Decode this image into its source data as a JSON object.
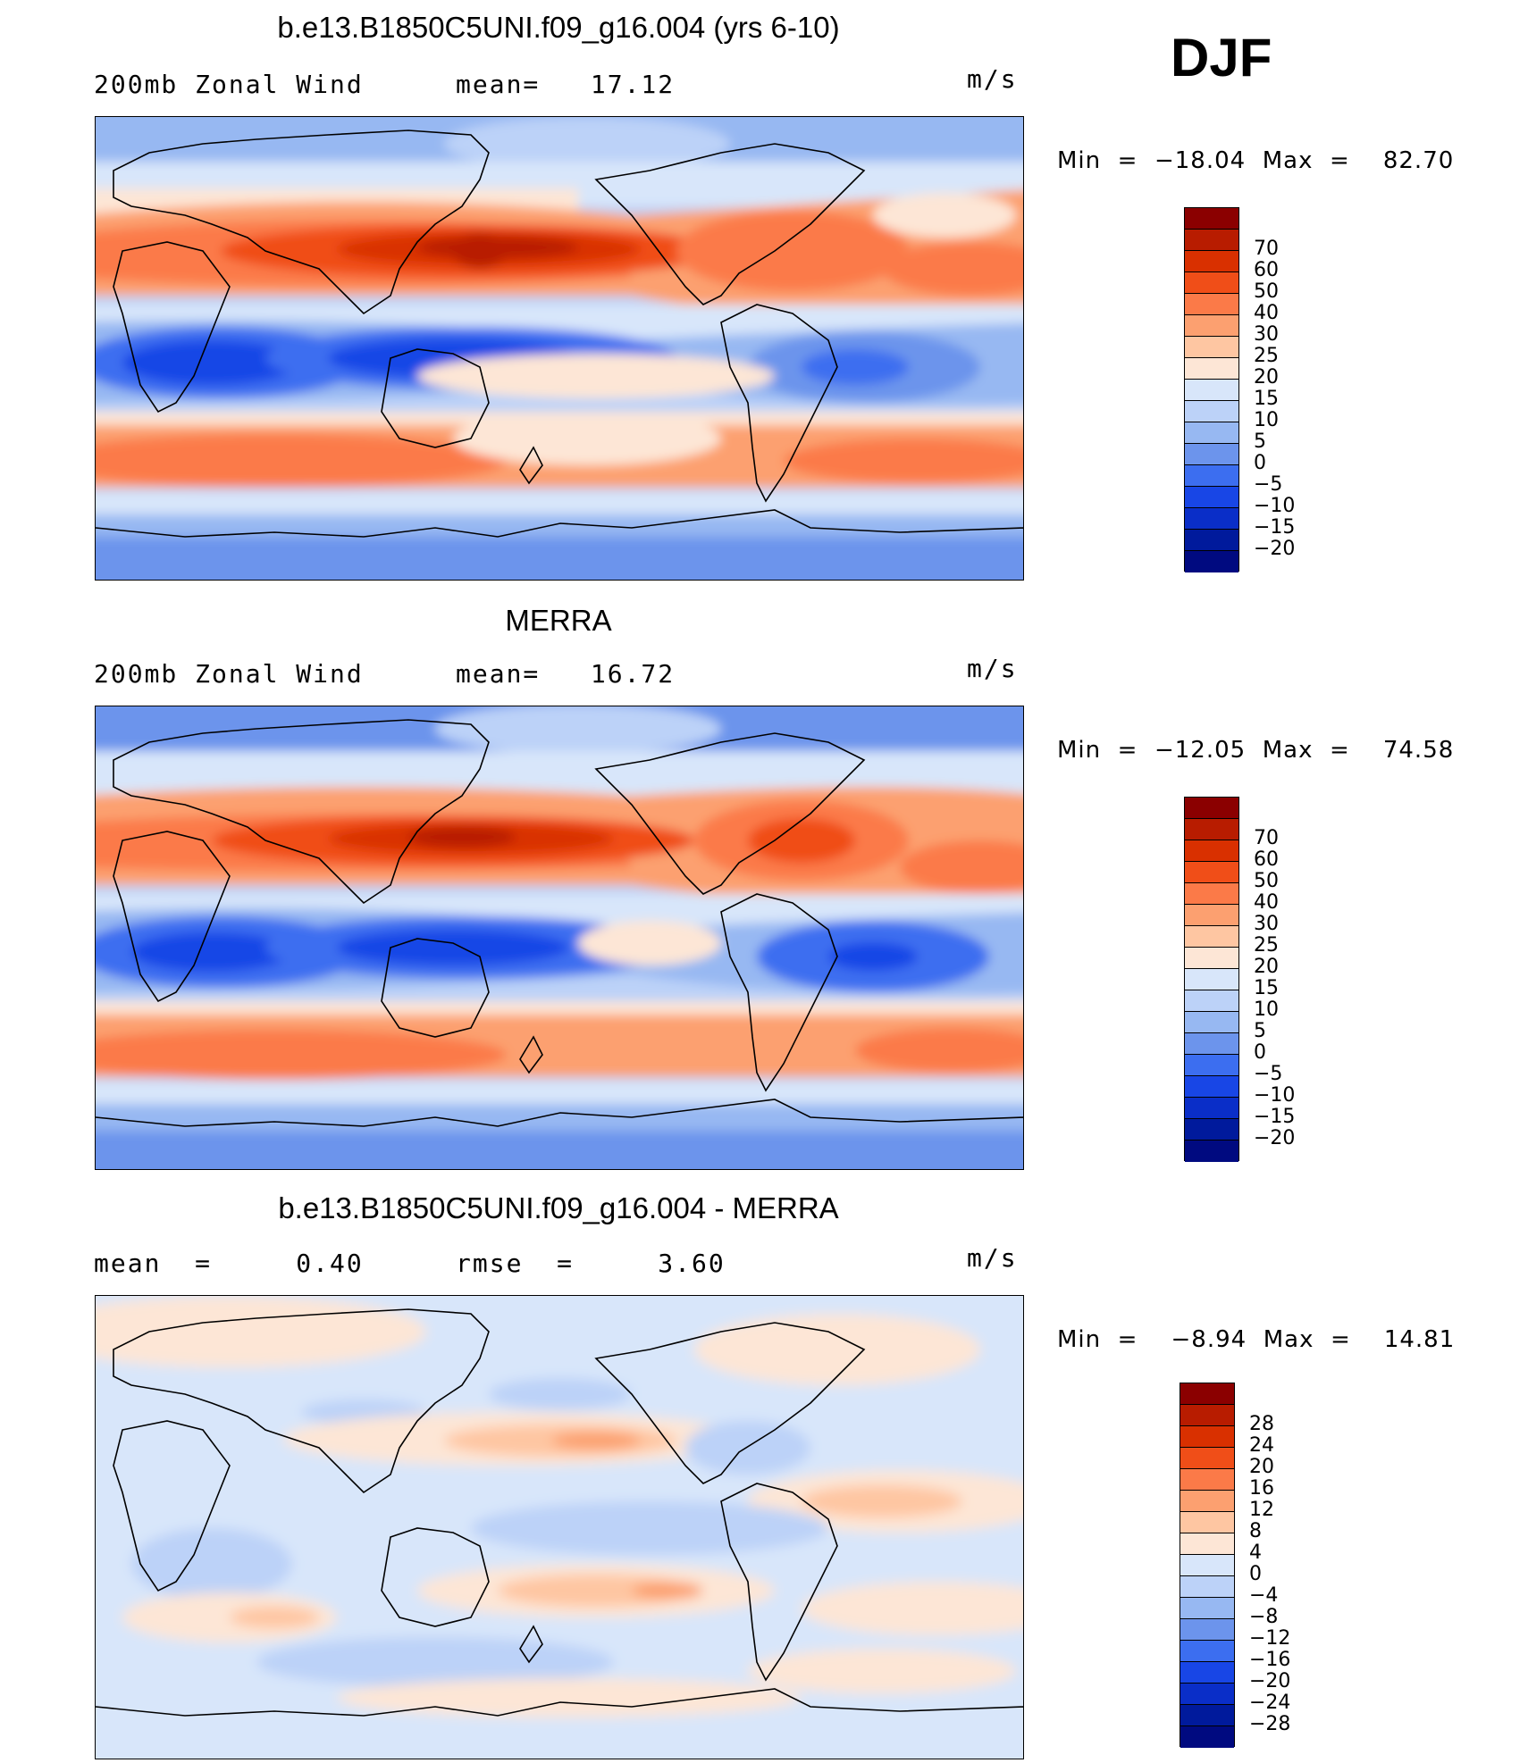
{
  "season": "DJF",
  "panels": [
    {
      "title": "b.e13.B1850C5UNI.f09_g16.004 (yrs 6-10)",
      "subtitle_left": "200mb Zonal Wind",
      "subtitle_mid": "mean=   17.12",
      "units": "m/s",
      "minmax": "Min  =  −18.04  Max  =    82.70",
      "colorbar": {
        "colors": [
          "#8b0000",
          "#b81c00",
          "#d93000",
          "#f04e18",
          "#fb7a48",
          "#fca070",
          "#fec6a2",
          "#fde6d6",
          "#d8e6fa",
          "#bcd2f8",
          "#97b8f2",
          "#6c94ec",
          "#3c6ef0",
          "#1846e6",
          "#0a2ec8",
          "#001a9c",
          "#000a80"
        ],
        "labels": [
          "70",
          "60",
          "50",
          "40",
          "30",
          "25",
          "20",
          "15",
          "10",
          "5",
          "0",
          "−5",
          "−10",
          "−15",
          "−20"
        ]
      }
    },
    {
      "title": "MERRA",
      "subtitle_left": "200mb Zonal Wind",
      "subtitle_mid": "mean=   16.72",
      "units": "m/s",
      "minmax": "Min  =  −12.05  Max  =    74.58",
      "colorbar": {
        "colors": [
          "#8b0000",
          "#b81c00",
          "#d93000",
          "#f04e18",
          "#fb7a48",
          "#fca070",
          "#fec6a2",
          "#fde6d6",
          "#d8e6fa",
          "#bcd2f8",
          "#97b8f2",
          "#6c94ec",
          "#3c6ef0",
          "#1846e6",
          "#0a2ec8",
          "#001a9c",
          "#000a80"
        ],
        "labels": [
          "70",
          "60",
          "50",
          "40",
          "30",
          "25",
          "20",
          "15",
          "10",
          "5",
          "0",
          "−5",
          "−10",
          "−15",
          "−20"
        ]
      }
    },
    {
      "title": "b.e13.B1850C5UNI.f09_g16.004 - MERRA",
      "subtitle_left": "mean  =     0.40",
      "subtitle_mid": "rmse  =     3.60",
      "units": "m/s",
      "minmax": "Min  =    −8.94  Max  =    14.81",
      "colorbar": {
        "colors": [
          "#8b0000",
          "#b81c00",
          "#d93000",
          "#f04e18",
          "#fb7a48",
          "#fca070",
          "#fec6a2",
          "#fde6d6",
          "#d8e6fa",
          "#bcd2f8",
          "#97b8f2",
          "#6c94ec",
          "#3c6ef0",
          "#1846e6",
          "#0a2ec8",
          "#001a9c",
          "#000a80"
        ],
        "labels": [
          "28",
          "24",
          "20",
          "16",
          "12",
          "8",
          "4",
          "0",
          "−4",
          "−8",
          "−12",
          "−16",
          "−20",
          "−24",
          "−28"
        ]
      }
    }
  ]
}
